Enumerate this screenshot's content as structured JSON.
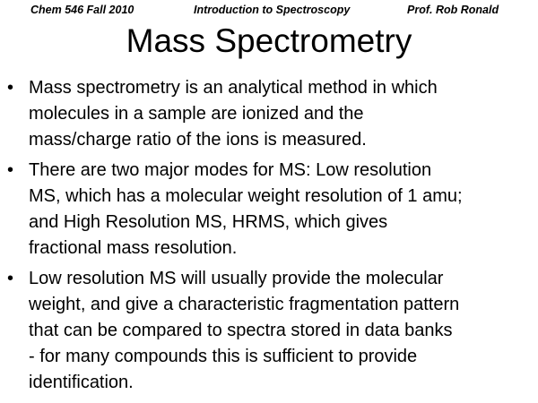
{
  "header": {
    "left": "Chem 546 Fall 2010",
    "center": "Introduction to Spectroscopy",
    "right": "Prof. Rob Ronald"
  },
  "title": "Mass Spectrometry",
  "bullet_marker": "•",
  "bullets": [
    {
      "lines": [
        "Mass spectrometry is an analytical method in which",
        "molecules in a sample are ionized and the",
        "mass/charge ratio of the ions is measured."
      ]
    },
    {
      "lines": [
        "There are two major modes for MS: Low resolution",
        "MS, which has a molecular weight resolution of 1 amu;",
        "and High Resolution MS, HRMS, which gives",
        "fractional mass resolution."
      ]
    },
    {
      "lines": [
        "Low resolution MS will usually provide the molecular",
        "weight, and give a characteristic fragmentation pattern",
        "that can be compared to spectra stored in data banks",
        "- for many compounds this is sufficient to provide",
        "identification."
      ]
    }
  ]
}
